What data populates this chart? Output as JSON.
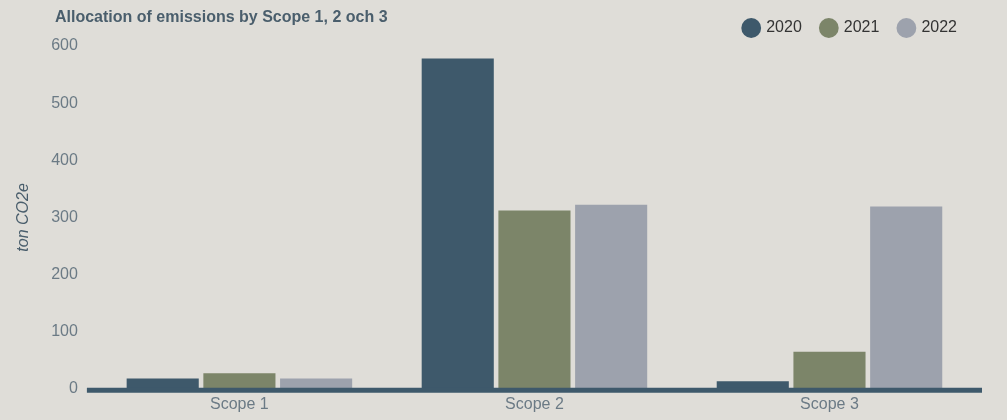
{
  "chart_data": {
    "type": "bar",
    "title": "Allocation of emissions by Scope 1, 2 och 3",
    "ylabel": "ton CO2e",
    "categories": [
      "Scope 1",
      "Scope 2",
      "Scope 3"
    ],
    "series": [
      {
        "name": "2020",
        "color": "#3e596b",
        "values": [
          18,
          578,
          13
        ]
      },
      {
        "name": "2021",
        "color": "#7c8569",
        "values": [
          27,
          312,
          65
        ]
      },
      {
        "name": "2022",
        "color": "#9da2ad",
        "values": [
          18,
          322,
          319
        ]
      }
    ],
    "ylim": [
      0,
      600
    ],
    "yticks": [
      0,
      100,
      200,
      300,
      400,
      500,
      600
    ],
    "grid": false,
    "legend": "top right"
  }
}
